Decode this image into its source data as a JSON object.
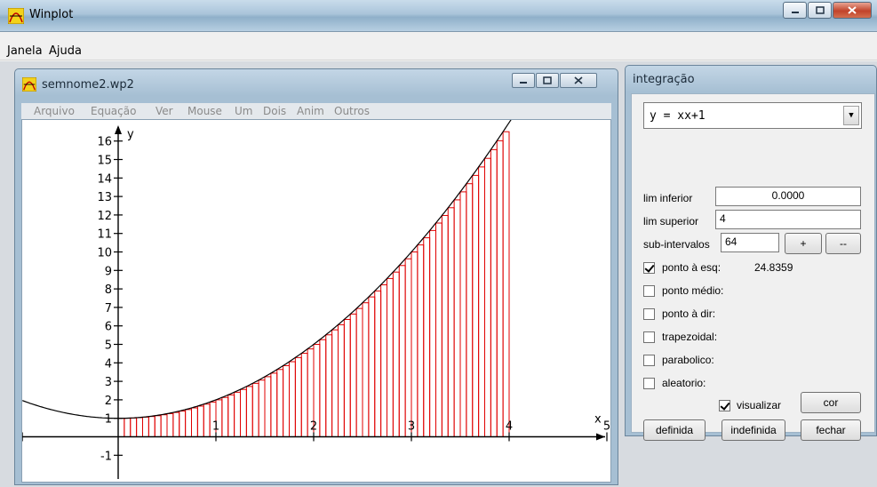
{
  "app": {
    "title": "Winplot",
    "menu": [
      "Janela",
      "Ajuda"
    ]
  },
  "plot_window": {
    "title": "semnome2.wp2",
    "menu": [
      "Arquivo",
      "Equação",
      "Ver",
      "Mouse",
      "Um",
      "Dois",
      "Anim",
      "Outros"
    ]
  },
  "integration": {
    "title": "integração",
    "function": "y = xx+1",
    "lim_inferior_label": "lim inferior",
    "lim_inferior_value": "0.0000",
    "lim_superior_label": "lim superior",
    "lim_superior_value": "4",
    "subintervals_label": "sub-intervalos",
    "subintervals_value": "64",
    "plus_label": "+",
    "minus_label": "--",
    "methods": [
      {
        "label": "ponto à esq:",
        "checked": true,
        "result": "24.8359"
      },
      {
        "label": "ponto médio:",
        "checked": false,
        "result": ""
      },
      {
        "label": "ponto à dir:",
        "checked": false,
        "result": ""
      },
      {
        "label": "trapezoidal:",
        "checked": false,
        "result": ""
      },
      {
        "label": "parabolico:",
        "checked": false,
        "result": ""
      },
      {
        "label": "aleatorio:",
        "checked": false,
        "result": ""
      }
    ],
    "visualizar_label": "visualizar",
    "visualizar_checked": true,
    "cor_label": "cor",
    "definida_label": "definida",
    "indefinida_label": "indefinida",
    "fechar_label": "fechar"
  },
  "chart_data": {
    "type": "line",
    "function": "y = x^2 + 1",
    "x_range": [
      -1,
      5
    ],
    "y_range": [
      -2,
      17
    ],
    "xlabel": "x",
    "ylabel": "y",
    "x_ticks": [
      "1",
      "2",
      "3",
      "4",
      "5"
    ],
    "y_ticks": [
      "-1",
      "1",
      "2",
      "3",
      "4",
      "5",
      "6",
      "7",
      "8",
      "9",
      "10",
      "11",
      "12",
      "13",
      "14",
      "15",
      "16"
    ],
    "rectangles": {
      "method": "left",
      "from": 0,
      "to": 4,
      "count": 64
    },
    "curve_color": "#000000",
    "rect_color": "#e00000"
  }
}
